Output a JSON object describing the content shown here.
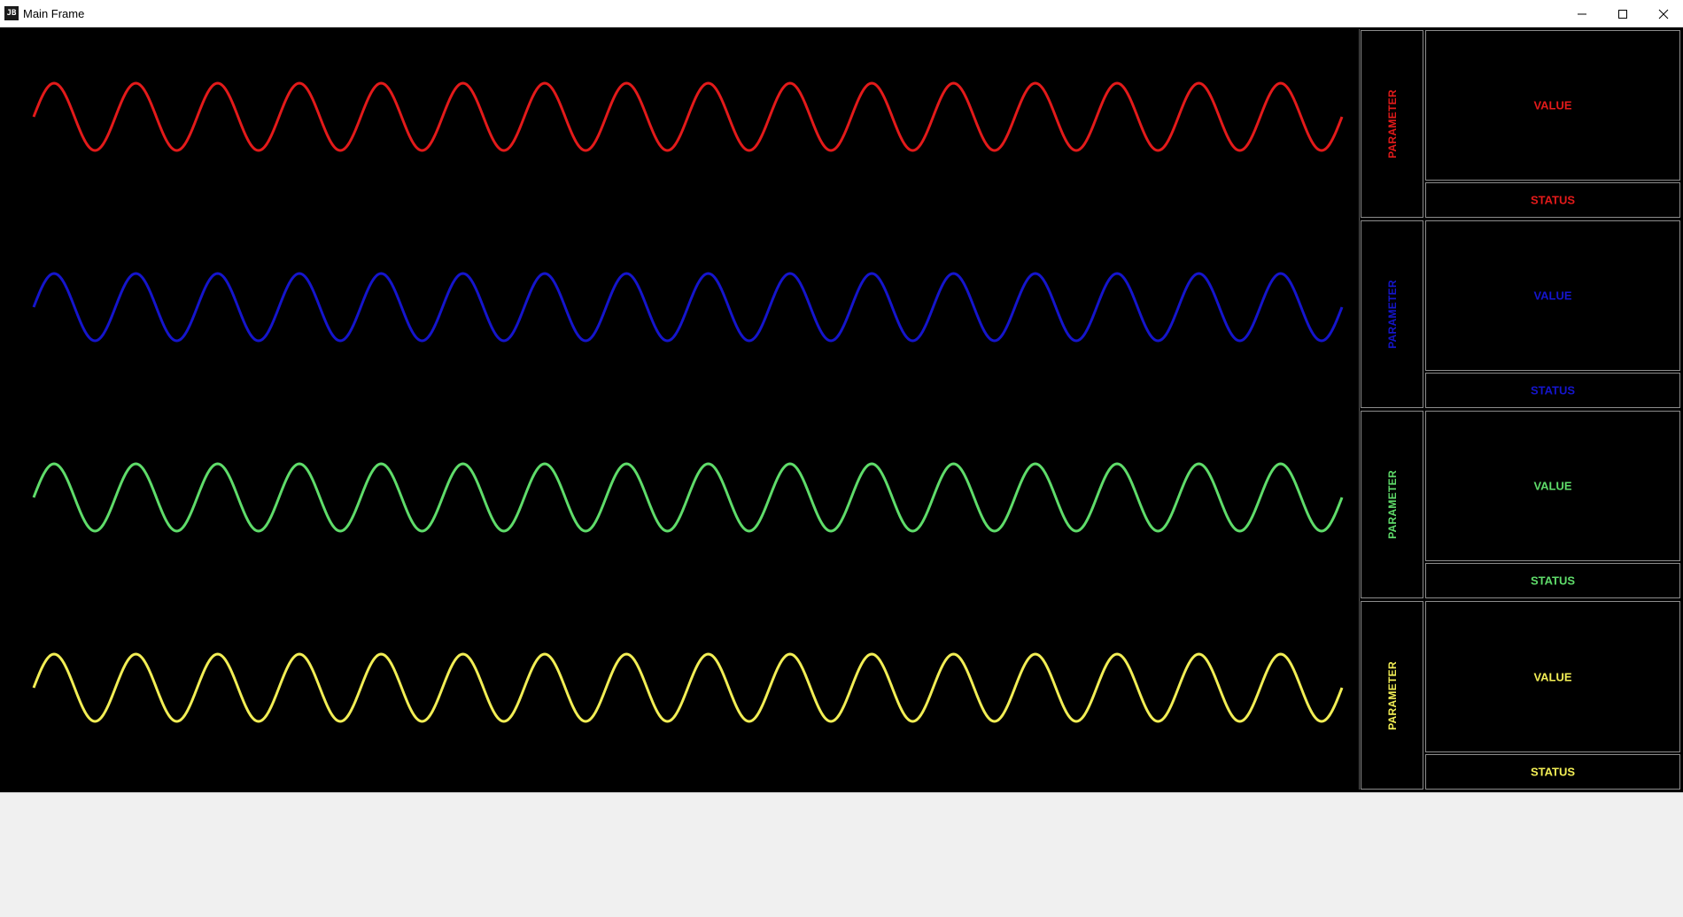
{
  "window": {
    "title": "Main Frame",
    "icon": "jb-app-icon"
  },
  "channels": [
    {
      "color": "#e31a1a",
      "parameter_label": "PARAMETER",
      "value_label": "VALUE",
      "status_label": "STATUS"
    },
    {
      "color": "#1515cc",
      "parameter_label": "PARAMETER",
      "value_label": "VALUE",
      "status_label": "STATUS"
    },
    {
      "color": "#5fdc6a",
      "parameter_label": "PARAMETER",
      "value_label": "VALUE",
      "status_label": "STATUS"
    },
    {
      "color": "#f2ee55",
      "parameter_label": "PARAMETER",
      "value_label": "VALUE",
      "status_label": "STATUS"
    }
  ],
  "wave": {
    "cycles": 16,
    "start_phase_deg": 180
  }
}
